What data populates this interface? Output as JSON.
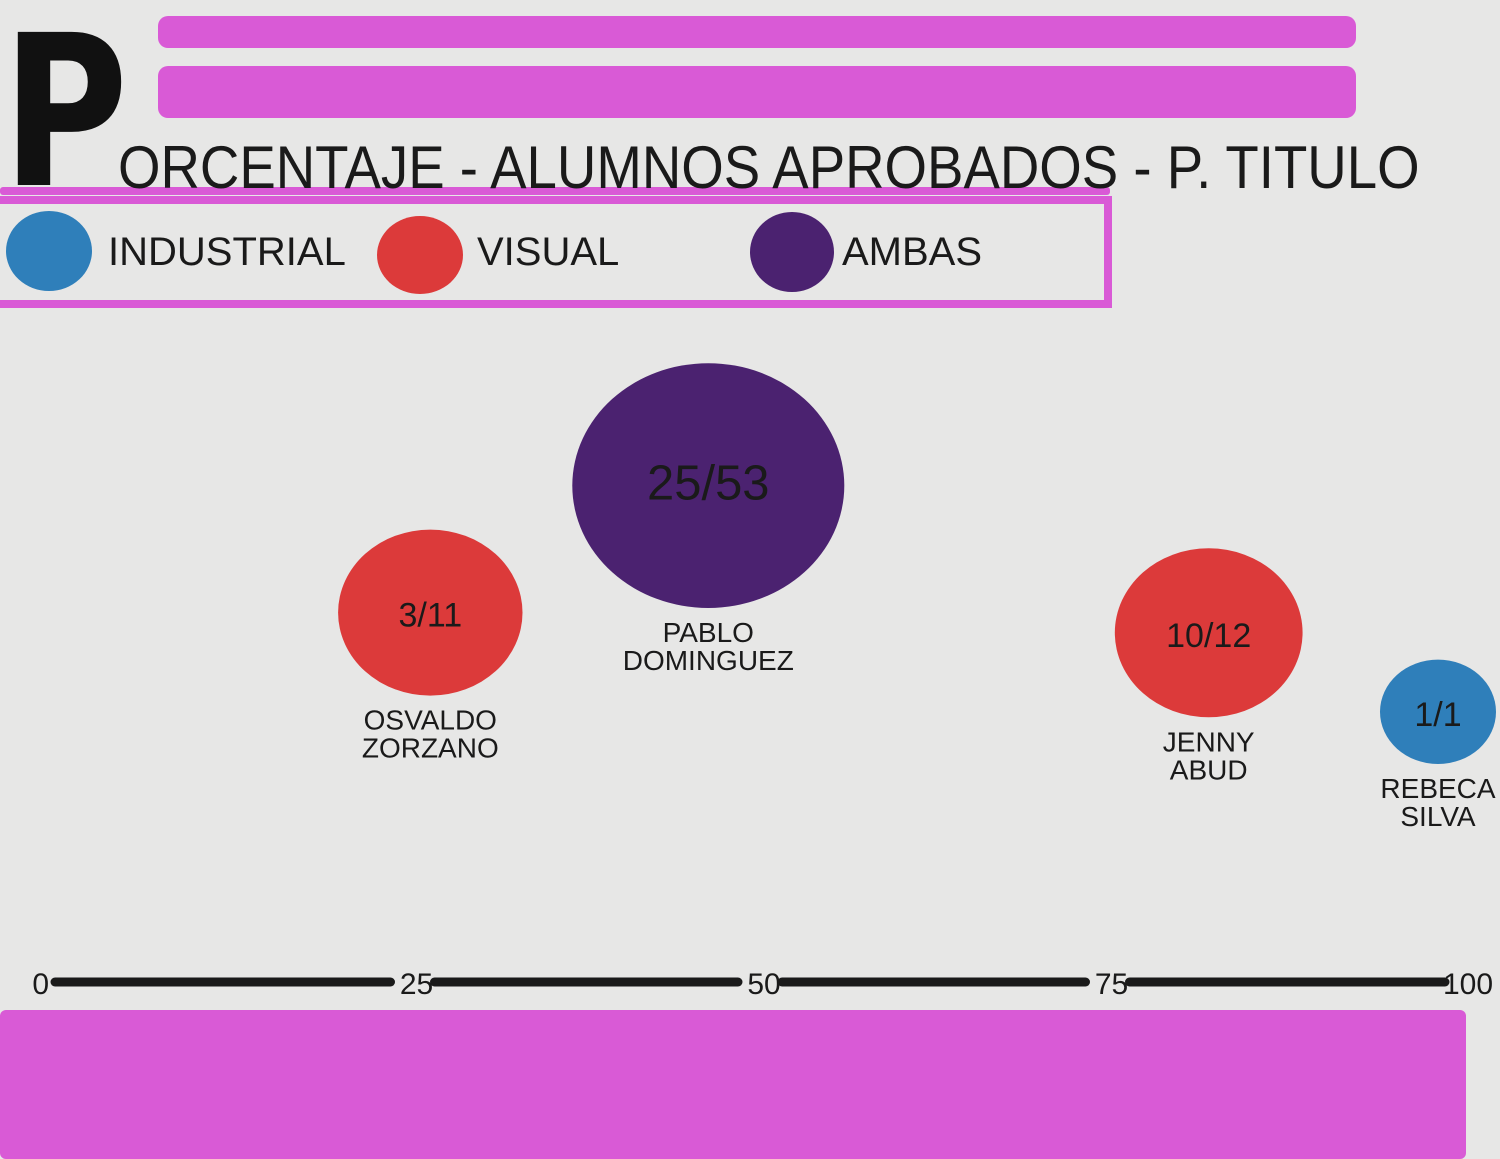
{
  "title": {
    "first_letter": "P",
    "rest": "ORCENTAJE - ALUMNOS APROBADOS - P. TITULO"
  },
  "legend": [
    {
      "label": "INDUSTRIAL",
      "color": "#2f7fba"
    },
    {
      "label": "VISUAL",
      "color": "#dc3a3a"
    },
    {
      "label": "AMBAS",
      "color": "#4b2270"
    }
  ],
  "colors": {
    "accent_pink": "#d95ad6",
    "axis": "#1a1a1a",
    "background": "#e7e7e6"
  },
  "chart_data": {
    "type": "scatter",
    "xlim": [
      0,
      100
    ],
    "x_ticks": [
      "0",
      "25",
      "50",
      "75",
      "100"
    ],
    "grid": false,
    "legend_position": "top-left",
    "points": [
      {
        "label": "PABLO DOMINGUEZ",
        "label_lines": [
          "PABLO",
          "DOMINGUEZ"
        ],
        "x": 47,
        "value_text": "25/53",
        "passed": 25,
        "total": 53,
        "category": "AMBAS",
        "color": "#4b2270"
      },
      {
        "label": "OSVALDO ZORZANO",
        "label_lines": [
          "OSVALDO",
          "ZORZANO"
        ],
        "x": 27,
        "value_text": "3/11",
        "passed": 3,
        "total": 11,
        "category": "VISUAL",
        "color": "#dc3a3a"
      },
      {
        "label": "JENNY ABUD",
        "label_lines": [
          "JENNY",
          "ABUD"
        ],
        "x": 83,
        "value_text": "10/12",
        "passed": 10,
        "total": 12,
        "category": "VISUAL",
        "color": "#dc3a3a"
      },
      {
        "label": "REBECA SILVA",
        "label_lines": [
          "REBECA",
          "SILVA"
        ],
        "x": 100,
        "value_text": "1/1",
        "passed": 1,
        "total": 1,
        "category": "INDUSTRIAL",
        "color": "#2f7fba"
      }
    ]
  }
}
